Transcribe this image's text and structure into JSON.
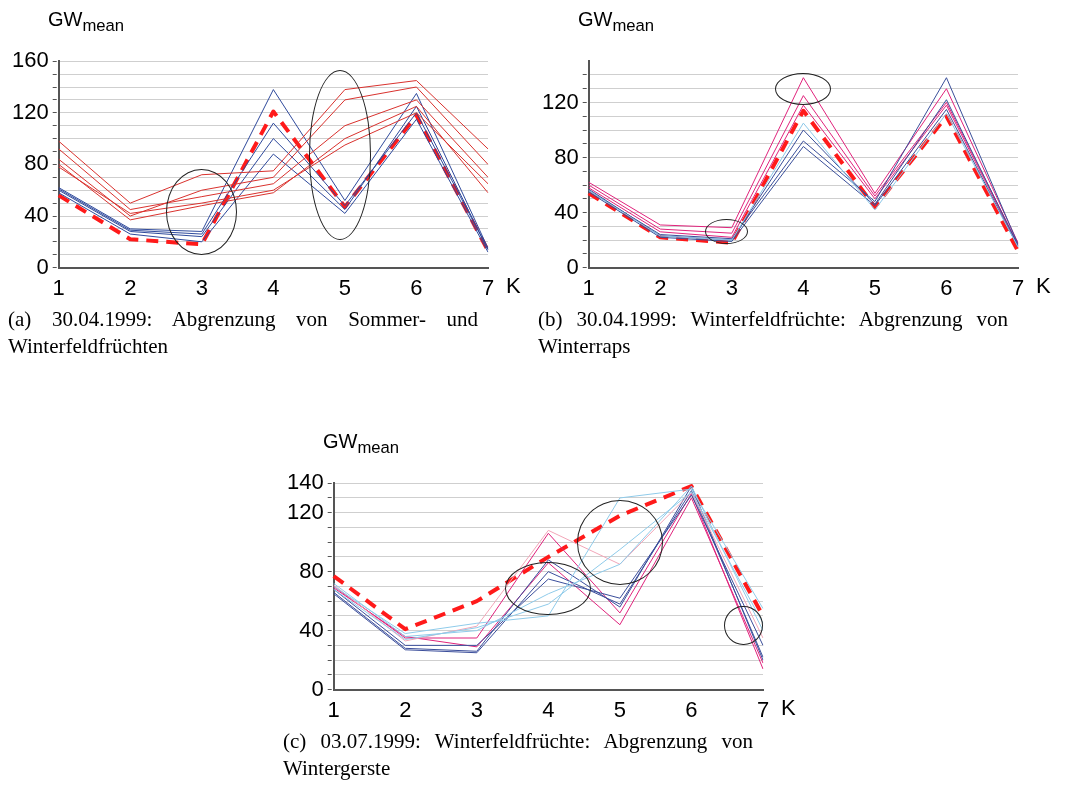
{
  "chart_data": [
    {
      "type": "line",
      "title": "(a) 30.04.1999: Abgrenzung von Sommer- und Winterfeldfrüchten",
      "ylabel": "GW$_{mean}$",
      "xlabel": "K",
      "categories": [
        "1",
        "2",
        "3",
        "4",
        "5",
        "6",
        "7"
      ],
      "ylim": [
        0,
        160
      ],
      "yticks": [
        0,
        {
          "value": 10,
          "label": null
        },
        {
          "value": 20,
          "label": null
        },
        {
          "value": 30,
          "label": null
        },
        40,
        {
          "value": 50,
          "label": null
        },
        {
          "value": 60,
          "label": null
        },
        {
          "value": 70,
          "label": null
        },
        80,
        {
          "value": 90,
          "label": null
        },
        {
          "value": 100,
          "label": null
        },
        {
          "value": 110,
          "label": null
        },
        120,
        {
          "value": 130,
          "label": null
        },
        {
          "value": 140,
          "label": null
        },
        {
          "value": 150,
          "label": null
        },
        160
      ],
      "grid": "y",
      "marker": "none",
      "line_style": "solid",
      "series": [
        {
          "color": "#d9322e",
          "values": [
            98,
            50,
            72,
            75,
            138,
            145,
            92
          ]
        },
        {
          "color": "#d9322e",
          "values": [
            84,
            40,
            60,
            70,
            130,
            140,
            80
          ]
        },
        {
          "color": "#d9322e",
          "values": [
            92,
            45,
            55,
            65,
            110,
            130,
            70
          ]
        },
        {
          "color": "#d9322e",
          "values": [
            80,
            37,
            48,
            58,
            100,
            125,
            58
          ]
        },
        {
          "color": "#d9322e",
          "values": [
            78,
            42,
            50,
            60,
            95,
            120,
            65
          ]
        },
        {
          "color": "#2f4a9c",
          "values": [
            62,
            30,
            28,
            138,
            52,
            135,
            15
          ]
        },
        {
          "color": "#2f4a9c",
          "values": [
            61,
            29,
            26,
            112,
            48,
            120,
            14
          ]
        },
        {
          "color": "#2f4a9c",
          "values": [
            60,
            28,
            24,
            100,
            45,
            125,
            14
          ]
        },
        {
          "color": "#2f4a9c",
          "values": [
            58,
            26,
            20,
            88,
            42,
            115,
            12
          ]
        },
        {
          "color": "#ff1a1a",
          "line_style": "dashed",
          "values": [
            56,
            22,
            18,
            121,
            47,
            118,
            13
          ]
        }
      ]
    },
    {
      "type": "line",
      "title": "(b) 30.04.1999: Winterfeldfrüchte: Abgrenzung von Winterraps",
      "ylabel": "GW$_{mean}$",
      "xlabel": "K",
      "categories": [
        "1",
        "2",
        "3",
        "4",
        "5",
        "6",
        "7"
      ],
      "ylim": [
        0,
        150
      ],
      "yticks": [
        0,
        {
          "value": 10,
          "label": null
        },
        {
          "value": 20,
          "label": null
        },
        {
          "value": 30,
          "label": null
        },
        40,
        {
          "value": 50,
          "label": null
        },
        {
          "value": 60,
          "label": null
        },
        {
          "value": 70,
          "label": null
        },
        80,
        {
          "value": 90,
          "label": null
        },
        {
          "value": 100,
          "label": null
        },
        {
          "value": 110,
          "label": null
        },
        120,
        {
          "value": 130,
          "label": null
        },
        {
          "value": 140,
          "label": null
        }
      ],
      "grid": "y",
      "marker": "none",
      "line_style": "solid",
      "series": [
        {
          "color": "#8cc8e8",
          "values": [
            56,
            23,
            20,
            105,
            42,
            112,
            15
          ]
        },
        {
          "color": "#3a4f9a",
          "values": [
            57,
            23,
            20,
            100,
            46,
            122,
            16
          ]
        },
        {
          "color": "#3a4f9a",
          "values": [
            55,
            22,
            19,
            88,
            45,
            115,
            15
          ]
        },
        {
          "color": "#3a4f9a",
          "values": [
            56,
            24,
            21,
            92,
            48,
            138,
            17
          ]
        },
        {
          "color": "#e0237c",
          "values": [
            62,
            31,
            29,
            138,
            54,
            130,
            18
          ]
        },
        {
          "color": "#e0237c",
          "values": [
            60,
            28,
            25,
            125,
            52,
            120,
            17
          ]
        },
        {
          "color": "#e0237c",
          "values": [
            58,
            26,
            22,
            118,
            50,
            118,
            16
          ]
        },
        {
          "color": "#ff1a1a",
          "line_style": "dashed",
          "values": [
            54,
            22,
            18,
            114,
            44,
            110,
            12
          ]
        }
      ]
    },
    {
      "type": "line",
      "title": "(c) 03.07.1999: Winterfeldfrüchte: Abgrenzung von Wintergerste",
      "ylabel": "GW$_{mean}$",
      "xlabel": "K",
      "categories": [
        "1",
        "2",
        "3",
        "4",
        "5",
        "6",
        "7"
      ],
      "ylim": [
        0,
        140
      ],
      "yticks": [
        0,
        {
          "value": 10,
          "label": null
        },
        {
          "value": 20,
          "label": null
        },
        {
          "value": 30,
          "label": null
        },
        40,
        {
          "value": 50,
          "label": null
        },
        {
          "value": 60,
          "label": null
        },
        {
          "value": 70,
          "label": null
        },
        80,
        {
          "value": 90,
          "label": null
        },
        {
          "value": 100,
          "label": null
        },
        {
          "value": 110,
          "label": null
        },
        120,
        {
          "value": 130,
          "label": null
        },
        140
      ],
      "grid": "y",
      "marker": "none",
      "line_style": "solid",
      "series": [
        {
          "color": "#8fcbea",
          "values": [
            70,
            38,
            45,
            50,
            130,
            136,
            55
          ]
        },
        {
          "color": "#8fcbea",
          "values": [
            68,
            34,
            42,
            58,
            95,
            134,
            45
          ]
        },
        {
          "color": "#8fcbea",
          "values": [
            72,
            36,
            40,
            65,
            85,
            138,
            40
          ]
        },
        {
          "color": "#f2a6b8",
          "values": [
            71,
            33,
            43,
            108,
            85,
            134,
            35
          ]
        },
        {
          "color": "#3b4e9b",
          "values": [
            66,
            28,
            26,
            88,
            56,
            138,
            20
          ]
        },
        {
          "color": "#3b4e9b",
          "values": [
            65,
            27,
            25,
            80,
            58,
            135,
            22
          ]
        },
        {
          "color": "#3b4e9b",
          "values": [
            68,
            30,
            30,
            75,
            62,
            132,
            30
          ]
        },
        {
          "color": "#e0237c",
          "values": [
            70,
            35,
            35,
            106,
            52,
            133,
            14
          ]
        },
        {
          "color": "#e0237c",
          "values": [
            69,
            36,
            29,
            86,
            44,
            130,
            18
          ]
        },
        {
          "color": "#ff1a1a",
          "line_style": "dashed",
          "values": [
            77,
            41,
            60,
            90,
            118,
            138,
            50
          ]
        }
      ]
    }
  ]
}
